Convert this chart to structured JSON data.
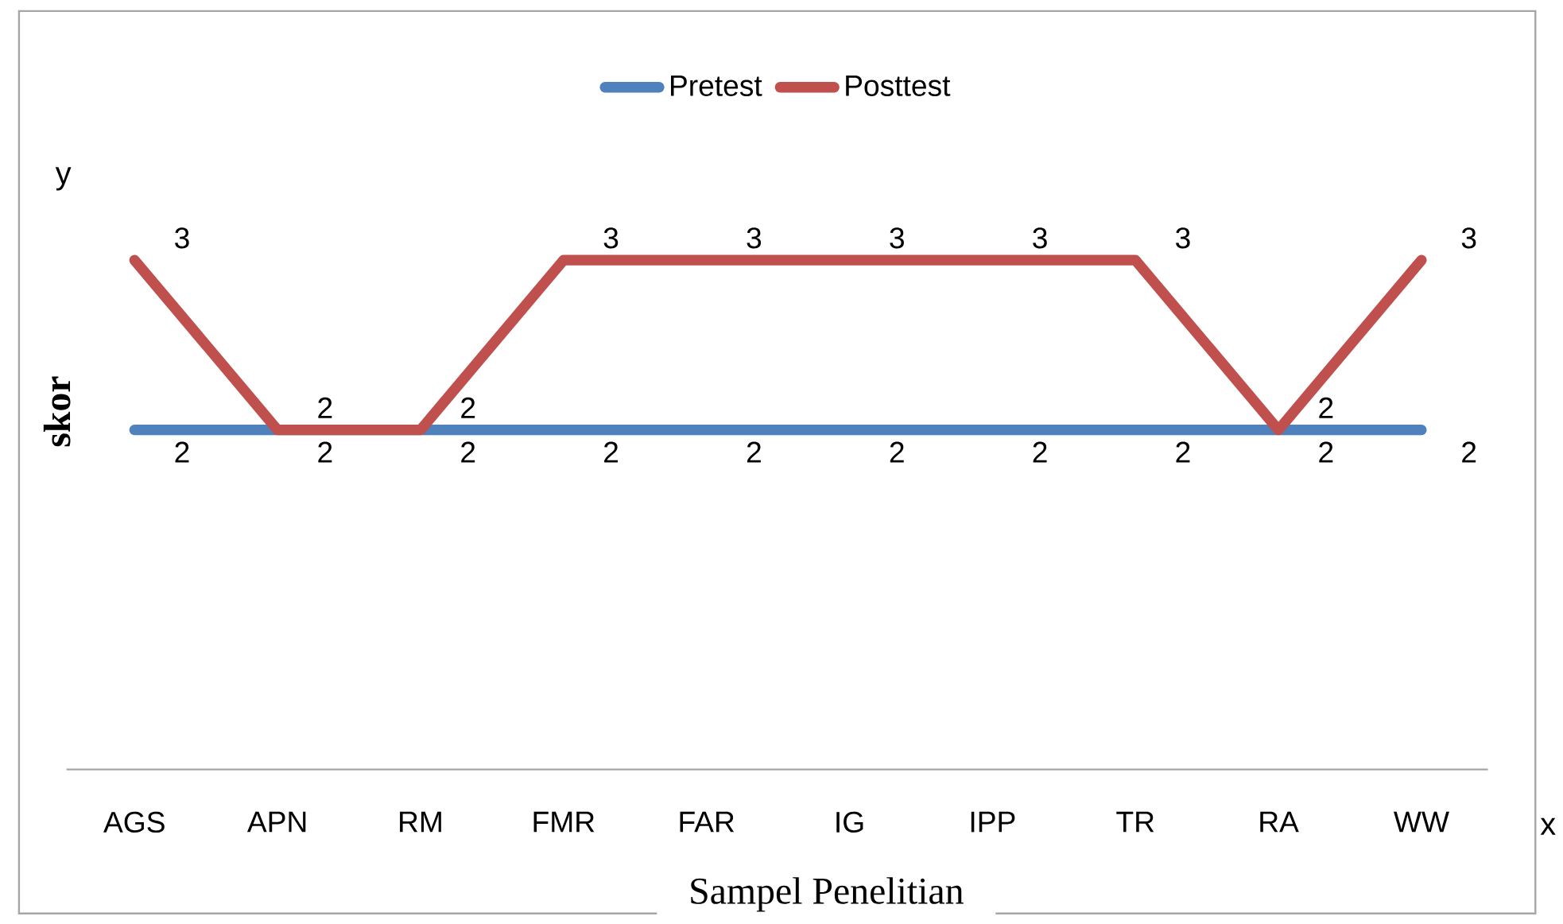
{
  "chart_data": {
    "type": "line",
    "xlabel": "Sampel Penelitian",
    "ylabel": "skor",
    "annotations": [
      "y",
      "x"
    ],
    "categories": [
      "AGS",
      "APN",
      "RM",
      "FMR",
      "FAR",
      "IG",
      "IPP",
      "TR",
      "RA",
      "WW"
    ],
    "series": [
      {
        "name": "Pretest",
        "color": "#4f81bd",
        "values": [
          2,
          2,
          2,
          2,
          2,
          2,
          2,
          2,
          2,
          2
        ]
      },
      {
        "name": "Posttest",
        "color": "#c0504d",
        "values": [
          3,
          2,
          2,
          3,
          3,
          3,
          3,
          3,
          2,
          3
        ]
      }
    ],
    "data_labels": true,
    "tick_labels": "x",
    "legend": "top",
    "marker": "none",
    "line_style": "solid"
  }
}
